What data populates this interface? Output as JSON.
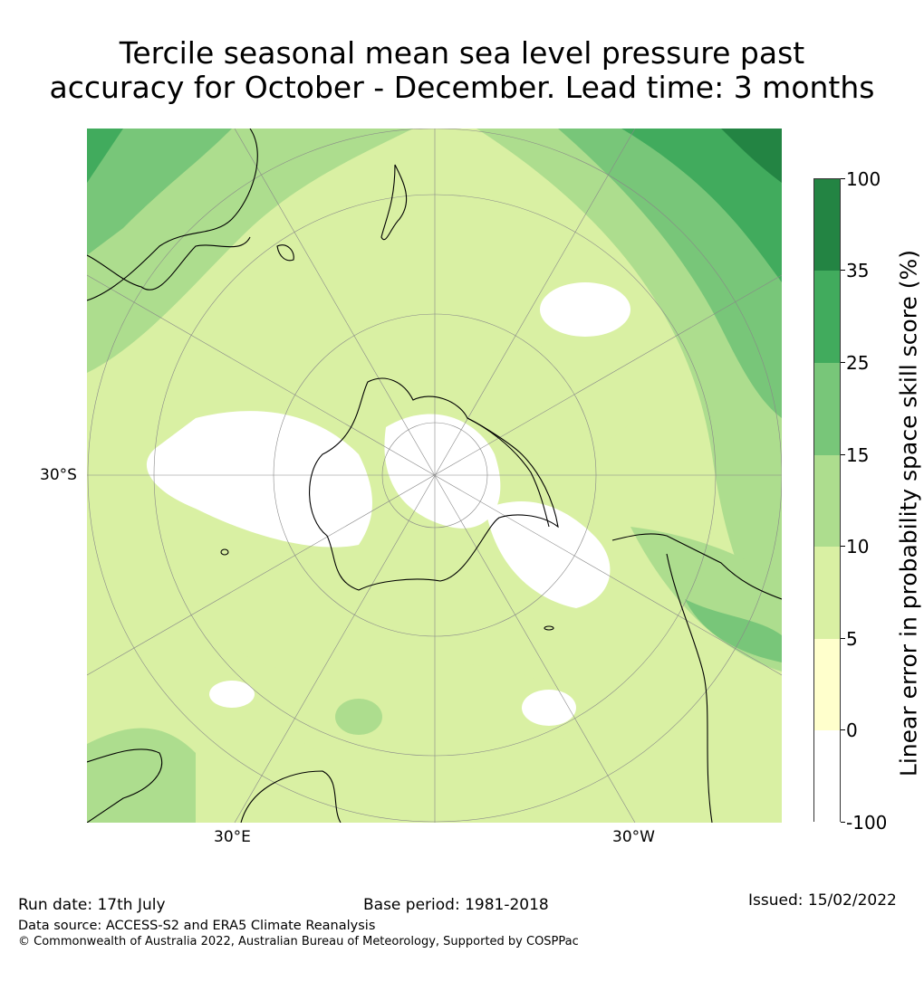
{
  "title": {
    "line1": "Tercile seasonal mean sea level pressure past",
    "line2": "accuracy for October - December. Lead time: 3 months"
  },
  "map": {
    "projection": "south-polar stereographic",
    "lat_labels": [
      "30°S"
    ],
    "lon_labels": [
      "30°E",
      "30°W"
    ],
    "coastline_color": "#000000",
    "gridline_color": "#888888"
  },
  "colorbar": {
    "label": "Linear error in probability space skill score (%)",
    "ticks": [
      "100",
      "35",
      "25",
      "15",
      "10",
      "5",
      "0",
      "-100"
    ],
    "bins": [
      {
        "from": -100,
        "to": 0,
        "color": "#ffffff"
      },
      {
        "from": 0,
        "to": 5,
        "color": "#ffffcc"
      },
      {
        "from": 5,
        "to": 10,
        "color": "#d9f0a3"
      },
      {
        "from": 10,
        "to": 15,
        "color": "#addd8e"
      },
      {
        "from": 15,
        "to": 25,
        "color": "#78c679"
      },
      {
        "from": 25,
        "to": 35,
        "color": "#41ab5d"
      },
      {
        "from": 35,
        "to": 100,
        "color": "#238443"
      }
    ]
  },
  "footer": {
    "run_date": "Run date: 17th July",
    "base_period": "Base period: 1981-2018",
    "issued": "Issued: 15/02/2022",
    "data_source": "Data source: ACCESS-S2 and ERA5 Climate Reanalysis",
    "copyright": "© Commonwealth of Australia 2022, Australian Bureau of Meteorology, Supported by COSPPac"
  }
}
